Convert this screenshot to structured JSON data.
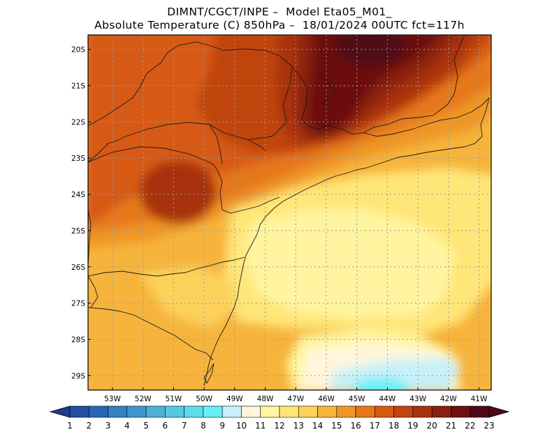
{
  "title": {
    "line1": "DIMNT/CGCT/INPE –  Model Eta05_M01_",
    "line2": "Absolute Temperature (C) 850hPa –  18/01/2024 00UTC fct=117h"
  },
  "map": {
    "lat_labels": [
      "20S",
      "21S",
      "22S",
      "23S",
      "24S",
      "25S",
      "26S",
      "27S",
      "28S",
      "29S"
    ],
    "lon_labels": [
      "53W",
      "52W",
      "51W",
      "50W",
      "49W",
      "48W",
      "47W",
      "46W",
      "45W",
      "44W",
      "43W",
      "42W",
      "41W"
    ],
    "lat_range": [
      -29.4,
      -19.6
    ],
    "lon_range": [
      -53.8,
      -40.6
    ]
  },
  "colorbar": {
    "labels": [
      "1",
      "2",
      "3",
      "4",
      "5",
      "6",
      "7",
      "8",
      "9",
      "10",
      "11",
      "12",
      "13",
      "14",
      "15",
      "16",
      "17",
      "18",
      "19",
      "20",
      "21",
      "22",
      "23"
    ],
    "colors": [
      "#1e3c8c",
      "#2150a0",
      "#2a66b4",
      "#3480c0",
      "#3f98cc",
      "#4bb1d8",
      "#55c8e2",
      "#5ddcec",
      "#66f0f6",
      "#c8f0f8",
      "#fff6dc",
      "#fff5a0",
      "#ffe678",
      "#fcd25a",
      "#f6b43c",
      "#ee9628",
      "#e6781a",
      "#d65a12",
      "#c0440e",
      "#a8320c",
      "#8a200c",
      "#6c1010",
      "#500818"
    ]
  }
}
